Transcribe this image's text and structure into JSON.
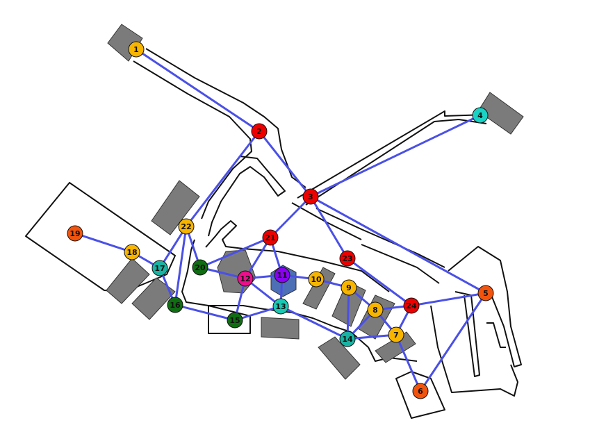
{
  "colors": {
    "edge": "#4a50e6",
    "building": "#7b7b7b",
    "outline": "#111111",
    "background": "#ffffff"
  },
  "nodes": [
    {
      "id": "1",
      "label": "1",
      "color": "#f7b500"
    },
    {
      "id": "2",
      "label": "2",
      "color": "#ee0000"
    },
    {
      "id": "3",
      "label": "3",
      "color": "#ee0000"
    },
    {
      "id": "4",
      "label": "4",
      "color": "#19d3c5"
    },
    {
      "id": "5",
      "label": "5",
      "color": "#f2540e"
    },
    {
      "id": "6",
      "label": "6",
      "color": "#f2540e"
    },
    {
      "id": "7",
      "label": "7",
      "color": "#f7b500"
    },
    {
      "id": "8",
      "label": "8",
      "color": "#f7b500"
    },
    {
      "id": "9",
      "label": "9",
      "color": "#f7b500"
    },
    {
      "id": "10",
      "label": "10",
      "color": "#f7b500"
    },
    {
      "id": "11",
      "label": "11",
      "color": "#8a00f0"
    },
    {
      "id": "12",
      "label": "12",
      "color": "#ee0e8c"
    },
    {
      "id": "13",
      "label": "13",
      "color": "#19c9b4"
    },
    {
      "id": "14",
      "label": "14",
      "color": "#19b3a3"
    },
    {
      "id": "15",
      "label": "15",
      "color": "#0f6e12"
    },
    {
      "id": "16",
      "label": "16",
      "color": "#0f6e12"
    },
    {
      "id": "17",
      "label": "17",
      "color": "#19b3a3"
    },
    {
      "id": "18",
      "label": "18",
      "color": "#f7b500"
    },
    {
      "id": "19",
      "label": "19",
      "color": "#f2540e"
    },
    {
      "id": "20",
      "label": "20",
      "color": "#0f6e12"
    },
    {
      "id": "21",
      "label": "21",
      "color": "#ee0000"
    },
    {
      "id": "22",
      "label": "22",
      "color": "#f7b500"
    },
    {
      "id": "23",
      "label": "23",
      "color": "#ee0000"
    },
    {
      "id": "24",
      "label": "24",
      "color": "#ee0000"
    }
  ],
  "edges": [
    [
      "1",
      "2"
    ],
    [
      "2",
      "3"
    ],
    [
      "2",
      "22"
    ],
    [
      "3",
      "4"
    ],
    [
      "3",
      "5"
    ],
    [
      "3",
      "21"
    ],
    [
      "3",
      "23"
    ],
    [
      "5",
      "6"
    ],
    [
      "5",
      "24"
    ],
    [
      "23",
      "24"
    ],
    [
      "24",
      "7"
    ],
    [
      "24",
      "8"
    ],
    [
      "7",
      "8"
    ],
    [
      "7",
      "6"
    ],
    [
      "7",
      "14"
    ],
    [
      "8",
      "14"
    ],
    [
      "8",
      "9"
    ],
    [
      "9",
      "10"
    ],
    [
      "9",
      "14"
    ],
    [
      "10",
      "11"
    ],
    [
      "11",
      "12"
    ],
    [
      "11",
      "13"
    ],
    [
      "11",
      "21"
    ],
    [
      "12",
      "21"
    ],
    [
      "12",
      "13"
    ],
    [
      "12",
      "15"
    ],
    [
      "12",
      "20"
    ],
    [
      "13",
      "14"
    ],
    [
      "13",
      "15"
    ],
    [
      "15",
      "16"
    ],
    [
      "16",
      "17"
    ],
    [
      "16",
      "22"
    ],
    [
      "17",
      "18"
    ],
    [
      "17",
      "22"
    ],
    [
      "18",
      "19"
    ],
    [
      "20",
      "21"
    ],
    [
      "20",
      "22"
    ]
  ]
}
